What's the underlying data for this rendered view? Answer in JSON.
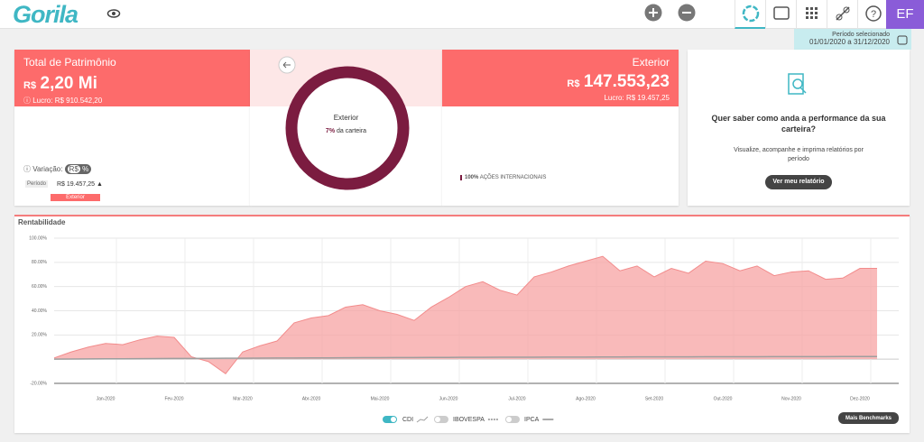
{
  "header": {
    "logo": "Gorila",
    "user_initials": "EF",
    "period_label": "Período selecionado",
    "period": "01/01/2020 a 31/12/2020"
  },
  "cards": {
    "total": {
      "title": "Total de Patrimônio",
      "currency": "R$",
      "value": "2,20 Mi",
      "profit_label": "Lucro:",
      "profit": "R$ 910.542,20",
      "variation_label": "Variação:",
      "toggle": [
        "R$",
        "%"
      ],
      "period_label": "Período",
      "period_value": "R$ 19.457,25",
      "tag": "Exterior"
    },
    "donut": {
      "label": "Exterior",
      "share": "7%",
      "share_text": "da carteira"
    },
    "exterior": {
      "title": "Exterior",
      "currency": "R$",
      "value": "147.553,23",
      "profit_label": "Lucro:",
      "profit": "R$ 19.457,25",
      "allocation_share": "100%",
      "allocation_name": "AÇÕES INTERNACIONAIS"
    },
    "report": {
      "question": "Quer saber como anda a performance da sua carteira?",
      "text": "Visualize, acompanhe e imprima relatórios por período",
      "button": "Ver meu relatório"
    }
  },
  "chart_data": {
    "type": "area",
    "title": "Rentabilidade",
    "categories": [
      null,
      null,
      null,
      "Jan-2020",
      null,
      null,
      null,
      "Fev-2020",
      null,
      null,
      null,
      "Mar-2020",
      null,
      null,
      null,
      "Abr-2020",
      null,
      null,
      null,
      "Mai-2020",
      null,
      null,
      null,
      "Jun-2020",
      null,
      null,
      null,
      "Jul-2020",
      null,
      null,
      null,
      "Ago-2020",
      null,
      null,
      null,
      "Set-2020",
      null,
      null,
      null,
      "Out-2020",
      null,
      null,
      null,
      "Nov-2020",
      null,
      null,
      null,
      "Dez-2020",
      null
    ],
    "series": [
      {
        "color": "#f7a3a3",
        "values": [
          1,
          6,
          10,
          13,
          12,
          16,
          19,
          18,
          2,
          -2,
          -12,
          6,
          11,
          15,
          30,
          34,
          36,
          43,
          45,
          40,
          37,
          32,
          43,
          51,
          60,
          64,
          57,
          53,
          68,
          72,
          77,
          81,
          85,
          73,
          77,
          68,
          75,
          71,
          81,
          79,
          73,
          77,
          69,
          72,
          73,
          66,
          67,
          75,
          75
        ]
      },
      {
        "name": "CDI",
        "color": "#9e9e9e",
        "values": [
          0,
          0.1,
          0.2,
          0.3,
          0.35,
          0.4,
          0.5,
          0.55,
          0.6,
          0.7,
          0.75,
          0.8,
          0.9,
          0.95,
          1,
          1.05,
          1.1,
          1.15,
          1.2,
          1.25,
          1.3,
          1.35,
          1.4,
          1.45,
          1.5,
          1.55,
          1.6,
          1.62,
          1.65,
          1.7,
          1.72,
          1.75,
          1.8,
          1.82,
          1.85,
          1.88,
          1.9,
          1.92,
          1.95,
          1.98,
          2,
          2.02,
          2.05,
          2.08,
          2.1,
          2.12,
          2.15,
          2.18,
          2.2
        ]
      }
    ],
    "benchmarks": [
      "IBOVESPA",
      "IPCA"
    ],
    "button": "Mais Benchmarks",
    "ylim": [
      -20,
      100
    ],
    "yticks": [
      {
        "value": 100,
        "label": "100.00%"
      },
      {
        "value": 80,
        "label": "80.00%"
      },
      {
        "value": 60,
        "label": "60.00%"
      },
      {
        "value": 40,
        "label": "40.00%"
      },
      {
        "value": 20,
        "label": "20.00%"
      },
      {
        "value": -20,
        "label": "-20.00%"
      }
    ],
    "grid": true
  }
}
